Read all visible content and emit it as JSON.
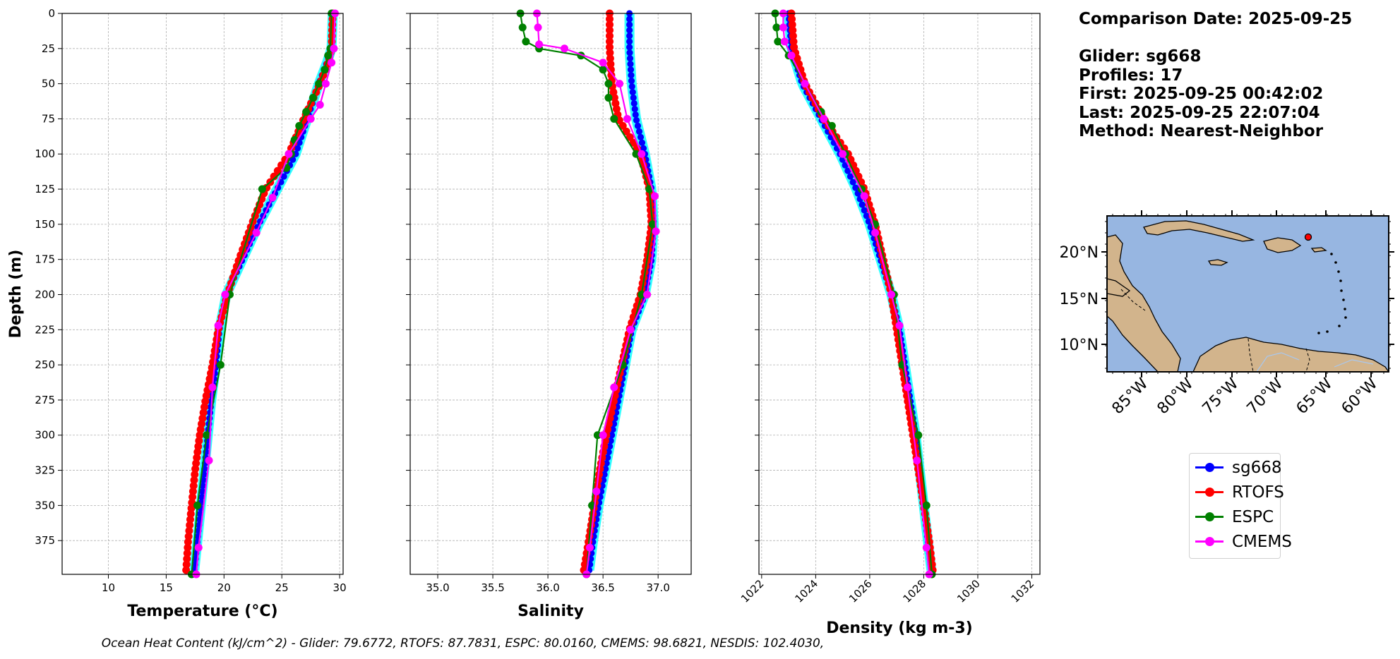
{
  "info": {
    "comparison": "Comparison Date: 2025-09-25",
    "glider": "Glider: sg668",
    "profiles": "Profiles: 17",
    "first": "First: 2025-09-25 00:42:02",
    "last": "Last: 2025-09-25 22:07:04",
    "method": "Method: Nearest-Neighbor"
  },
  "footer": "Ocean Heat Content (kJ/cm^2) - Glider: 79.6772,  RTOFS: 87.7831,  ESPC: 80.0160,  CMEMS: 98.6821,  NESDIS: 102.4030,",
  "legend": [
    {
      "label": "sg668",
      "color": "#0000ff"
    },
    {
      "label": "RTOFS",
      "color": "#ff0000"
    },
    {
      "label": "ESPC",
      "color": "#008000"
    },
    {
      "label": "CMEMS",
      "color": "#ff00ff"
    }
  ],
  "map": {
    "lat_labels": [
      "20°N",
      "15°N",
      "10°N"
    ],
    "lon_labels": [
      "85°W",
      "80°W",
      "75°W",
      "70°W",
      "65°W",
      "60°W"
    ],
    "ocean_color": "#97b6e1",
    "land_color": "#d2b48c",
    "glider_marker_color": "#ff0000"
  },
  "chart_data": [
    {
      "type": "line",
      "xlabel": "Temperature (°C)",
      "ylabel": "Depth (m)",
      "xlim": [
        6,
        30.3
      ],
      "ylim": [
        399,
        0
      ],
      "xticks": [
        10,
        15,
        20,
        25,
        30
      ],
      "yticks": [
        0,
        25,
        50,
        75,
        100,
        125,
        150,
        175,
        200,
        225,
        250,
        275,
        300,
        325,
        350,
        375
      ],
      "grid": true,
      "series": [
        {
          "name": "sg668",
          "depth": [
            0,
            25,
            35,
            50,
            75,
            100,
            125,
            150,
            175,
            200,
            225,
            250,
            275,
            300,
            325,
            350,
            375,
            399
          ],
          "values": [
            29.4,
            29.3,
            28.9,
            28.2,
            27.2,
            26.2,
            24.6,
            23.0,
            21.6,
            20.2,
            19.6,
            19.3,
            18.9,
            18.6,
            18.3,
            18.0,
            17.7,
            17.4
          ]
        },
        {
          "name": "RTOFS",
          "depth": [
            0,
            25,
            35,
            50,
            75,
            100,
            125,
            150,
            175,
            200,
            225,
            250,
            275,
            300,
            325,
            350,
            375,
            399
          ],
          "values": [
            29.4,
            29.3,
            29.0,
            28.3,
            26.9,
            25.6,
            23.6,
            22.4,
            21.3,
            20.3,
            19.5,
            19.0,
            18.4,
            17.9,
            17.5,
            17.2,
            16.9,
            16.7
          ]
        },
        {
          "name": "ESPC",
          "depth": [
            0,
            25,
            30,
            40,
            50,
            60,
            70,
            80,
            90,
            100,
            110,
            125,
            200,
            250,
            300,
            350,
            399
          ],
          "values": [
            29.3,
            29.2,
            29.0,
            28.7,
            28.2,
            27.7,
            27.1,
            26.5,
            26.1,
            25.8,
            25.4,
            23.3,
            20.5,
            19.7,
            18.5,
            17.7,
            17.2
          ]
        },
        {
          "name": "CMEMS",
          "depth": [
            0,
            25,
            35,
            50,
            65,
            75,
            100,
            131,
            156,
            200,
            222,
            266,
            318,
            380,
            399
          ],
          "values": [
            29.6,
            29.5,
            29.3,
            28.8,
            28.3,
            27.5,
            25.6,
            24.2,
            22.8,
            20.1,
            19.5,
            19.0,
            18.7,
            17.8,
            17.6
          ]
        }
      ]
    },
    {
      "type": "line",
      "xlabel": "Salinity",
      "ylabel": "",
      "xlim": [
        34.75,
        37.3
      ],
      "ylim": [
        399,
        0
      ],
      "xticks": [
        35.0,
        35.5,
        36.0,
        36.5,
        37.0
      ],
      "grid": true,
      "series": [
        {
          "name": "sg668",
          "depth": [
            0,
            25,
            50,
            75,
            100,
            125,
            150,
            175,
            200,
            225,
            250,
            275,
            300,
            325,
            350,
            375,
            399
          ],
          "values": [
            36.74,
            36.74,
            36.76,
            36.8,
            36.88,
            36.94,
            36.96,
            36.94,
            36.88,
            36.76,
            36.7,
            36.64,
            36.58,
            36.52,
            36.46,
            36.41,
            36.37
          ]
        },
        {
          "name": "RTOFS",
          "depth": [
            0,
            25,
            50,
            75,
            100,
            125,
            150,
            175,
            200,
            225,
            250,
            275,
            300,
            325,
            350,
            375,
            399
          ],
          "values": [
            36.56,
            36.56,
            36.58,
            36.64,
            36.84,
            36.92,
            36.94,
            36.9,
            36.84,
            36.74,
            36.67,
            36.6,
            36.53,
            36.47,
            36.42,
            36.37,
            36.32
          ]
        },
        {
          "name": "ESPC",
          "depth": [
            0,
            10,
            20,
            25,
            30,
            40,
            50,
            60,
            75,
            100,
            125,
            150,
            200,
            250,
            300,
            350,
            399
          ],
          "values": [
            35.75,
            35.77,
            35.8,
            35.92,
            36.3,
            36.5,
            36.55,
            36.55,
            36.6,
            36.8,
            36.92,
            36.95,
            36.85,
            36.68,
            36.45,
            36.4,
            36.35
          ]
        },
        {
          "name": "CMEMS",
          "depth": [
            0,
            10,
            22,
            25,
            35,
            50,
            75,
            100,
            130,
            155,
            200,
            225,
            266,
            300,
            340,
            380,
            399
          ],
          "values": [
            35.9,
            35.91,
            35.92,
            36.15,
            36.5,
            36.65,
            36.72,
            36.85,
            36.97,
            36.98,
            36.9,
            36.75,
            36.6,
            36.5,
            36.44,
            36.38,
            36.35
          ]
        }
      ]
    },
    {
      "type": "line",
      "xlabel": "Density (kg m-3)",
      "ylabel": "",
      "xlim": [
        1021.9,
        1032.3
      ],
      "ylim": [
        399,
        0
      ],
      "xticks": [
        1022,
        1024,
        1026,
        1028,
        1030,
        1032
      ],
      "grid": true,
      "series": [
        {
          "name": "sg668",
          "depth": [
            0,
            25,
            50,
            75,
            100,
            125,
            150,
            175,
            200,
            225,
            250,
            275,
            300,
            325,
            350,
            375,
            399
          ],
          "values": [
            1023.0,
            1023.1,
            1023.5,
            1024.2,
            1024.9,
            1025.5,
            1026.0,
            1026.4,
            1026.8,
            1027.1,
            1027.3,
            1027.5,
            1027.7,
            1027.85,
            1028.0,
            1028.15,
            1028.3
          ]
        },
        {
          "name": "RTOFS",
          "depth": [
            0,
            25,
            50,
            75,
            100,
            125,
            150,
            175,
            200,
            225,
            250,
            275,
            300,
            325,
            350,
            375,
            399
          ],
          "values": [
            1023.1,
            1023.2,
            1023.6,
            1024.3,
            1025.2,
            1025.8,
            1026.2,
            1026.5,
            1026.8,
            1027.0,
            1027.2,
            1027.4,
            1027.6,
            1027.8,
            1028.0,
            1028.2,
            1028.35
          ]
        },
        {
          "name": "ESPC",
          "depth": [
            0,
            10,
            20,
            30,
            50,
            70,
            80,
            100,
            125,
            150,
            200,
            250,
            300,
            350,
            399
          ],
          "values": [
            1022.5,
            1022.55,
            1022.6,
            1023.0,
            1023.6,
            1024.2,
            1024.6,
            1025.1,
            1025.7,
            1026.2,
            1026.9,
            1027.2,
            1027.8,
            1028.1,
            1028.3
          ]
        },
        {
          "name": "CMEMS",
          "depth": [
            0,
            10,
            20,
            30,
            50,
            75,
            100,
            130,
            156,
            200,
            222,
            266,
            318,
            380,
            399
          ],
          "values": [
            1022.8,
            1022.8,
            1022.85,
            1023.1,
            1023.6,
            1024.3,
            1025.0,
            1025.8,
            1026.2,
            1026.8,
            1027.1,
            1027.4,
            1027.75,
            1028.1,
            1028.2
          ]
        }
      ]
    }
  ]
}
